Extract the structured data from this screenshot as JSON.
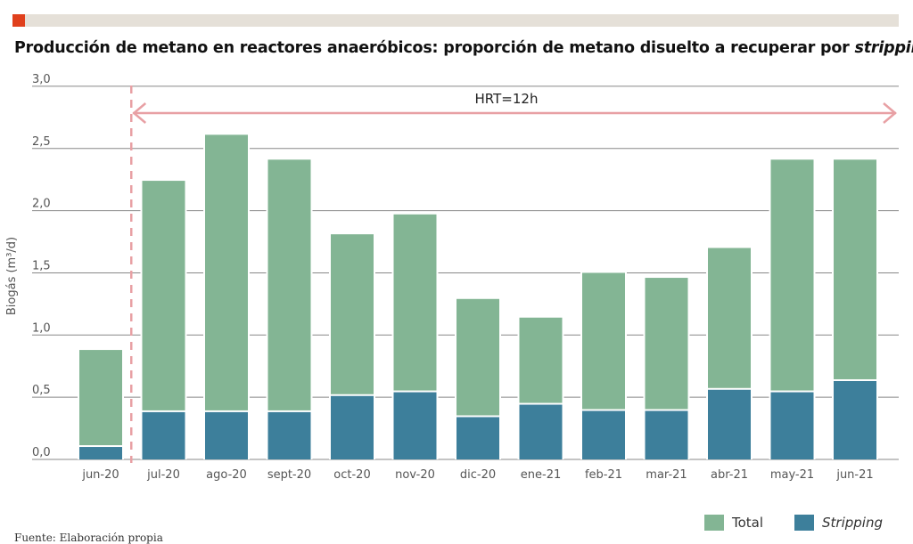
{
  "title_main": "Producción de metano en reactores anaeróbicos: proporción de metano disuelto a recuperar por ",
  "title_italic": "stripping",
  "source": "Fuente: Elaboración propia",
  "chart_data": {
    "type": "bar",
    "stacked": true,
    "ylabel": "Biogás (m³/d)",
    "ylim": [
      0,
      3.0
    ],
    "yticks": [
      "0,0",
      "0,5",
      "1,0",
      "1,5",
      "2,0",
      "2,5",
      "3,0"
    ],
    "grid": true,
    "legend_position": "bottom-right",
    "categories": [
      "jun-20",
      "jul-20",
      "ago-20",
      "sept-20",
      "oct-20",
      "nov-20",
      "dic-20",
      "ene-21",
      "feb-21",
      "mar-21",
      "abr-21",
      "may-21",
      "jun-21"
    ],
    "series": [
      {
        "name": "Total",
        "color": "#83b594",
        "values": [
          0.88,
          2.24,
          2.61,
          2.41,
          1.81,
          1.97,
          1.29,
          1.14,
          1.5,
          1.46,
          1.7,
          2.41,
          2.41
        ]
      },
      {
        "name": "Stripping",
        "color": "#3d7f9b",
        "values": [
          0.1,
          0.38,
          0.38,
          0.38,
          0.51,
          0.54,
          0.34,
          0.44,
          0.39,
          0.39,
          0.56,
          0.54,
          0.63
        ]
      }
    ],
    "annotation": {
      "text": "HRT=12h",
      "from": "jul-20",
      "to": "jun-21",
      "color": "#e8a0a4"
    }
  }
}
